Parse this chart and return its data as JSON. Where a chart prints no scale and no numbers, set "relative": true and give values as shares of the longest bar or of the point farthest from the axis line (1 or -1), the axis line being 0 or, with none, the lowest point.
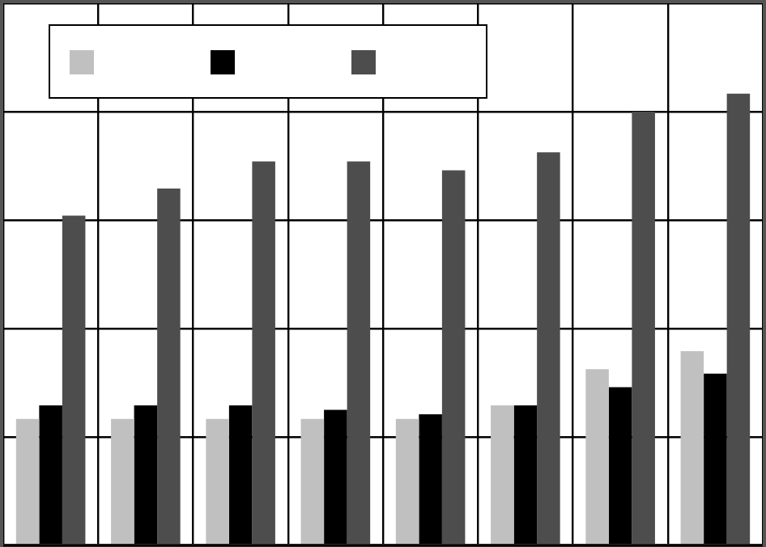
{
  "chart_data": {
    "type": "bar",
    "relative": true,
    "grid": true,
    "categories": [
      null,
      null,
      null,
      null,
      null,
      null,
      null,
      null
    ],
    "series": [
      {
        "color": "#c0c0c0",
        "values": [
          0.28,
          0.28,
          0.28,
          0.28,
          0.28,
          0.31,
          0.39,
          0.43
        ]
      },
      {
        "color": "#000000",
        "values": [
          0.31,
          0.31,
          0.31,
          0.3,
          0.29,
          0.31,
          0.35,
          0.38
        ]
      },
      {
        "color": "#4d4d4d",
        "values": [
          0.73,
          0.79,
          0.85,
          0.85,
          0.83,
          0.87,
          0.96,
          1
        ]
      }
    ]
  }
}
